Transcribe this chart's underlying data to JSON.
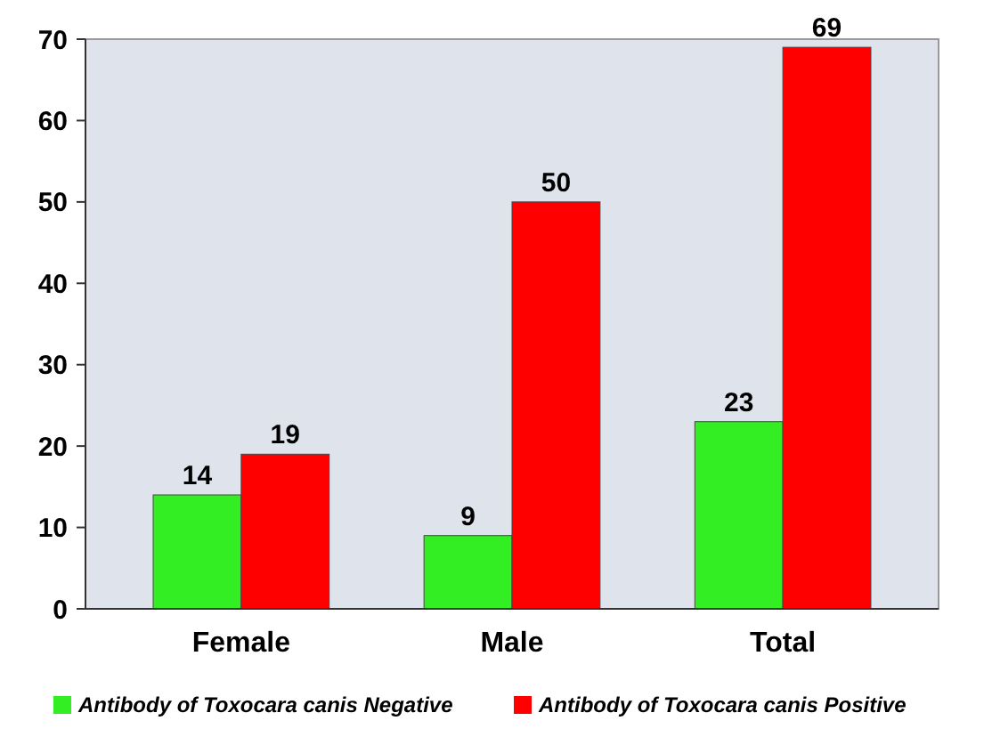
{
  "chart_data": {
    "type": "bar",
    "categories": [
      "Female",
      "Male",
      "Total"
    ],
    "series": [
      {
        "name": "Antibody of Toxocara canis Negative",
        "color": "#33ee22",
        "values": [
          14,
          9,
          23
        ]
      },
      {
        "name": "Antibody of Toxocara canis Positive",
        "color": "#ff0000",
        "values": [
          19,
          50,
          69
        ]
      }
    ],
    "ylim": [
      0,
      70
    ],
    "yticks": [
      0,
      10,
      20,
      30,
      40,
      50,
      60,
      70
    ],
    "data_labels": true,
    "legend": "bottom",
    "grid": false
  }
}
